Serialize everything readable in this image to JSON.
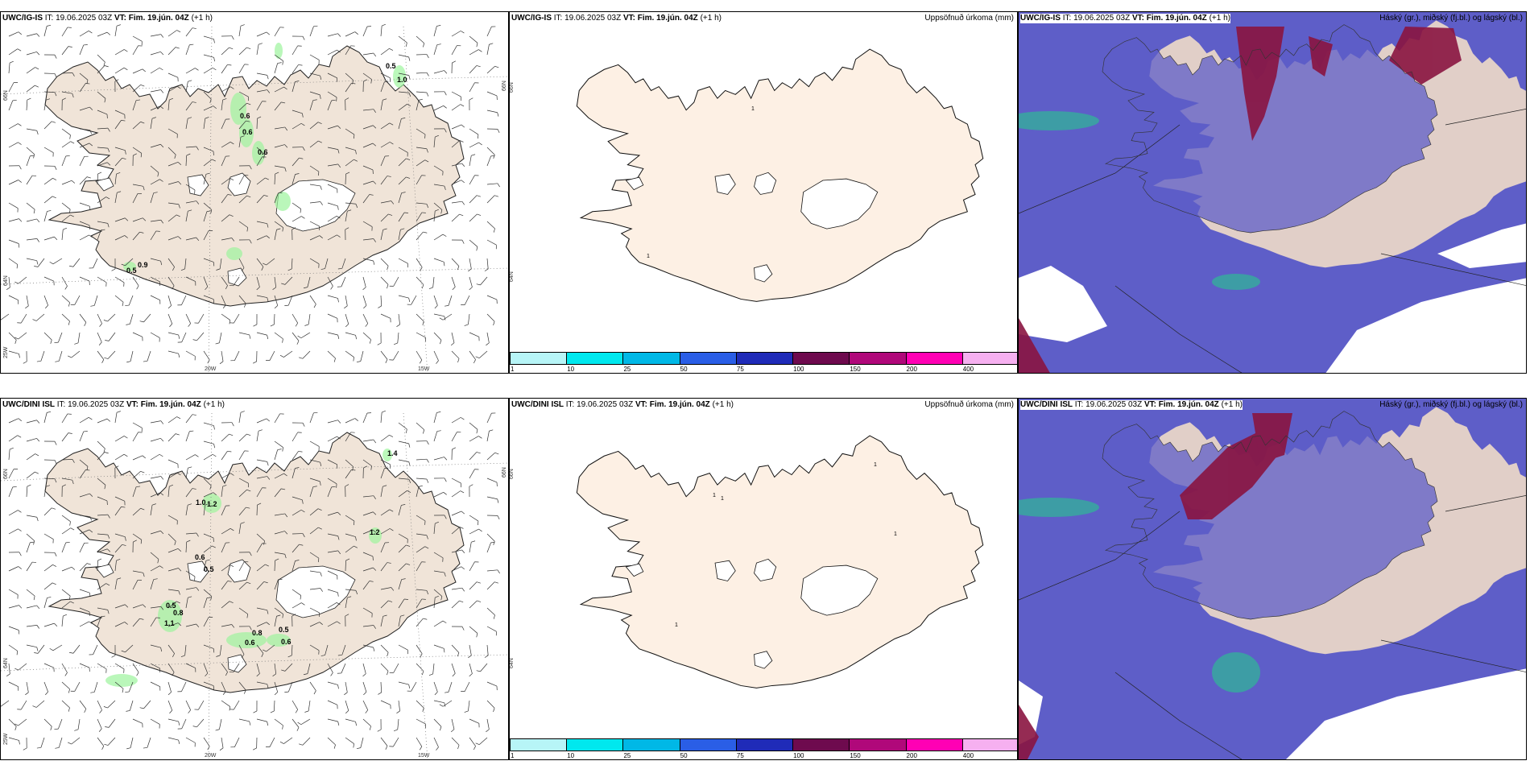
{
  "rows": [
    {
      "model": "UWC/IG-IS",
      "run": "IT: 19.06.2025 03Z",
      "vt": "VT: Fim. 19.jún. 04Z",
      "lead": "(+1 h)",
      "wind_values": [
        "0.5",
        "1.0",
        "0.6",
        "0.6",
        "0.6",
        "0.9",
        "0.5"
      ],
      "precip_values": [
        "1",
        "1"
      ],
      "axes": {
        "lat_top": "66N",
        "lat_bot": "64N",
        "lon_left": "20W",
        "lon_right": "15W",
        "lon_far": "25W",
        "lat_right_top": "66N",
        "lat_right_bot": "64N"
      }
    },
    {
      "model": "UWC/DINI ISL",
      "run": "IT: 19.06.2025 03Z",
      "vt": "VT: Fim. 19.jún. 04Z",
      "lead": "(+1 h)",
      "wind_values": [
        "1.4",
        "1.0",
        "1.2",
        "1.2",
        "0.6",
        "0.5",
        "0.5",
        "0.8",
        "1.1",
        "0.8",
        "0.6",
        "0.5",
        "0.6"
      ],
      "precip_values": [
        "1",
        "1",
        "1",
        "1",
        "1"
      ],
      "axes": {
        "lat_top": "66N",
        "lat_bot": "64N",
        "lon_left": "20W",
        "lon_right": "15W",
        "lon_far": "25W",
        "lat_right_top": "66N",
        "lat_right_bot": "64N"
      }
    }
  ],
  "precip_title": "Uppsöfnuð úrkoma (mm)",
  "cloud_title": "Háský (gr.), miðský (fj.bl.) og lágský (bl.)",
  "colorbar": {
    "ticks": [
      "1",
      "10",
      "25",
      "50",
      "75",
      "100",
      "150",
      "200",
      "400"
    ],
    "colors": [
      "#b7f5f7",
      "#00e8ee",
      "#00b8e6",
      "#2a5ee6",
      "#1f2bb8",
      "#6e0a4e",
      "#b0087a",
      "#ff00b4",
      "#f6b0f0"
    ]
  },
  "colors": {
    "land": "#f0e4d8",
    "precip_land": "#fdf0e4",
    "cloud_mid": "#5e5ec8",
    "cloud_high": "#8a1440",
    "cloud_low": "#ffffff",
    "precip_green": "#9ef59e"
  }
}
